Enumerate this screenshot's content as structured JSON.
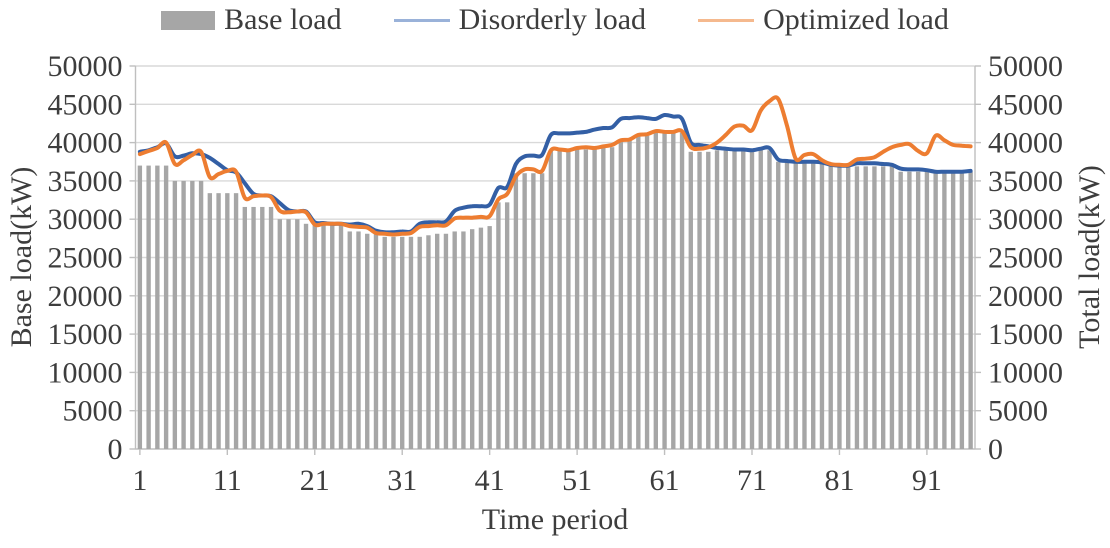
{
  "figure": {
    "xlabel": "Time period",
    "ylabel_left": "Base load(kW)",
    "ylabel_right": "Total load(kW)"
  },
  "legend": {
    "items": [
      {
        "label": "Base load",
        "type": "bar",
        "sample_color": "#a6a6a6"
      },
      {
        "label": "Disorderly load",
        "type": "line",
        "sample_color": "#9ab2d9"
      },
      {
        "label": "Optimized load",
        "type": "line",
        "sample_color": "#f5b98e"
      }
    ]
  },
  "chart_data": {
    "type": "bar+line combo",
    "x_label": "Time period",
    "x_min": 1,
    "x_max": 96,
    "x_ticks": [
      1,
      11,
      21,
      31,
      41,
      51,
      61,
      71,
      81,
      91
    ],
    "y_axis_left": {
      "label": "Base load(kW)",
      "min": 0,
      "max": 50000,
      "step": 5000
    },
    "y_axis_right": {
      "label": "Total load(kW)",
      "min": 0,
      "max": 50000,
      "step": 5000
    },
    "grid": "horizontal",
    "legend_position": "top",
    "colors": {
      "bar": "#a6a6a6",
      "disorderly": "#335fa5",
      "optimized": "#ed7d31",
      "gridline": "#d9d9d9",
      "axis_line": "#bfbfbf"
    },
    "series": [
      {
        "name": "Base load",
        "type": "bar",
        "axis": "left",
        "color": "#a6a6a6",
        "values": [
          37000,
          37000,
          37000,
          37000,
          35000,
          35000,
          35000,
          35000,
          33400,
          33400,
          33400,
          33400,
          31600,
          31600,
          31600,
          31600,
          30000,
          30000,
          30000,
          29400,
          29400,
          29400,
          29400,
          29400,
          28400,
          28400,
          28100,
          28100,
          27700,
          27700,
          27700,
          27700,
          27700,
          27900,
          28100,
          28100,
          28400,
          28400,
          28700,
          28900,
          29100,
          32200,
          32200,
          36000,
          36000,
          36000,
          36000,
          38900,
          38900,
          38900,
          39100,
          39100,
          39100,
          39400,
          39400,
          40300,
          40300,
          40900,
          40900,
          41300,
          41300,
          41300,
          41300,
          38800,
          38800,
          38800,
          39000,
          39000,
          39000,
          39000,
          39000,
          39000,
          39000,
          37500,
          37500,
          37500,
          37500,
          37500,
          37300,
          37300,
          37300,
          37300,
          36900,
          36900,
          36900,
          36900,
          36900,
          36200,
          36200,
          36200,
          36200,
          36200,
          36200,
          36200,
          36200,
          36200
        ]
      },
      {
        "name": "Disorderly load",
        "type": "line",
        "axis": "right",
        "color": "#335fa5",
        "values": [
          38800,
          39000,
          39400,
          39900,
          38200,
          38300,
          38600,
          38500,
          38000,
          37200,
          36400,
          36100,
          34700,
          33300,
          33100,
          33000,
          32100,
          31200,
          31000,
          31000,
          29600,
          29500,
          29400,
          29400,
          29300,
          29400,
          29100,
          28500,
          28300,
          28300,
          28400,
          28400,
          29400,
          29600,
          29600,
          29700,
          31100,
          31500,
          31700,
          31700,
          31900,
          34100,
          34200,
          37200,
          38200,
          38300,
          38400,
          41000,
          41200,
          41200,
          41300,
          41400,
          41700,
          41900,
          42000,
          43100,
          43200,
          43300,
          43200,
          43100,
          43600,
          43400,
          43100,
          40000,
          39700,
          39500,
          39300,
          39200,
          39100,
          39100,
          39000,
          39200,
          39300,
          37800,
          37600,
          37500,
          37500,
          37500,
          37400,
          37100,
          37000,
          37000,
          37300,
          37300,
          37300,
          37200,
          37100,
          36600,
          36500,
          36500,
          36400,
          36200,
          36200,
          36200,
          36200,
          36300
        ]
      },
      {
        "name": "Optimized load",
        "type": "line",
        "axis": "right",
        "color": "#ed7d31",
        "values": [
          38500,
          38900,
          39300,
          40000,
          37200,
          37700,
          38400,
          38800,
          35500,
          35900,
          36300,
          36200,
          32800,
          33000,
          33100,
          32900,
          31100,
          30900,
          31000,
          30900,
          29300,
          29400,
          29400,
          29400,
          29100,
          29000,
          28900,
          28200,
          28100,
          28000,
          28100,
          28200,
          29000,
          29100,
          29200,
          29200,
          30100,
          30200,
          30200,
          30300,
          30400,
          32600,
          33300,
          35600,
          36500,
          36500,
          36300,
          39000,
          39100,
          39000,
          39300,
          39400,
          39300,
          39500,
          39700,
          40300,
          40400,
          41000,
          41100,
          41500,
          41400,
          41400,
          41500,
          39400,
          39200,
          39400,
          40000,
          41000,
          42100,
          42200,
          41600,
          44200,
          45400,
          45700,
          42200,
          37900,
          38400,
          38500,
          37700,
          37200,
          37100,
          37100,
          37800,
          37900,
          38100,
          38800,
          39400,
          39700,
          39800,
          38900,
          38600,
          40900,
          40300,
          39700,
          39600,
          39500
        ]
      }
    ]
  }
}
